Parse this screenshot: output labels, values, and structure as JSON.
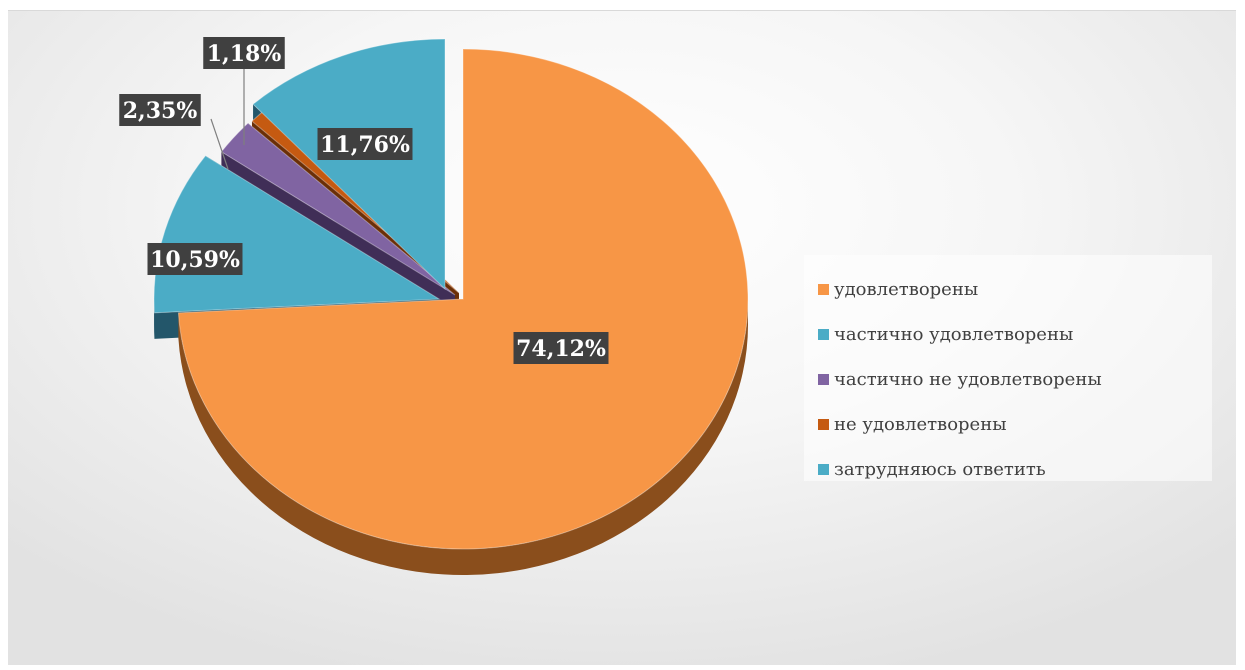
{
  "chart_data": {
    "type": "pie",
    "title": "",
    "legend_position": "right",
    "categories": [
      "удовлетворены",
      "частично удовлетворены",
      "частично не удовлетворены",
      "не удовлетворены",
      "затрудняюсь ответить"
    ],
    "values": [
      74.12,
      10.59,
      2.35,
      1.18,
      11.76
    ],
    "labels": [
      "74,12%",
      "10,59%",
      "2,35%",
      "1,18%",
      "11,76%"
    ],
    "colors": [
      "#f79646",
      "#4bacc6",
      "#8064a2",
      "#c55a11",
      "#4bacc6"
    ],
    "side_colors": [
      "#8a4e1c",
      "#23566a",
      "#402e57",
      "#6b2f07",
      "#23566a"
    ]
  }
}
